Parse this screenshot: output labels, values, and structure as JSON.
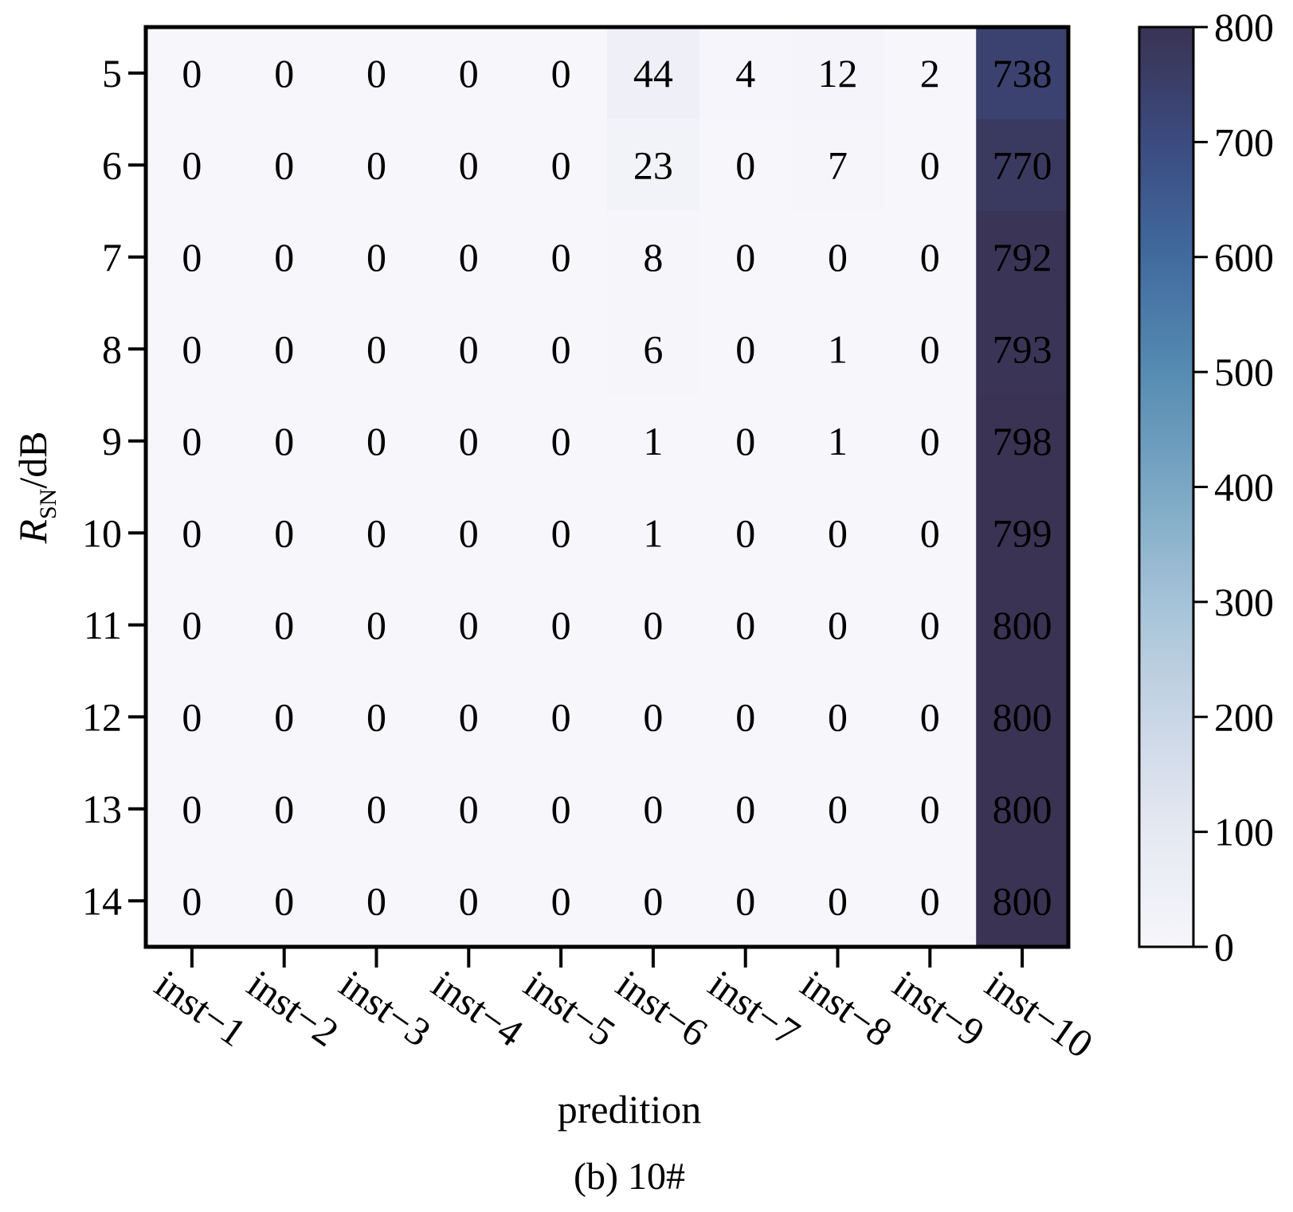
{
  "chart_data": {
    "type": "heatmap",
    "ylabel_main": "R",
    "ylabel_sub": "SN",
    "ylabel_rest": "/dB",
    "xlabel": "predition",
    "caption": "(b) 10#",
    "x_categories": [
      "inst−1",
      "inst−2",
      "inst−3",
      "inst−4",
      "inst−5",
      "inst−6",
      "inst−7",
      "inst−8",
      "inst−9",
      "inst−10"
    ],
    "y_categories": [
      "5",
      "6",
      "7",
      "8",
      "9",
      "10",
      "11",
      "12",
      "13",
      "14"
    ],
    "values": [
      [
        0,
        0,
        0,
        0,
        0,
        44,
        4,
        12,
        2,
        738
      ],
      [
        0,
        0,
        0,
        0,
        0,
        23,
        0,
        7,
        0,
        770
      ],
      [
        0,
        0,
        0,
        0,
        0,
        8,
        0,
        0,
        0,
        792
      ],
      [
        0,
        0,
        0,
        0,
        0,
        6,
        0,
        1,
        0,
        793
      ],
      [
        0,
        0,
        0,
        0,
        0,
        1,
        0,
        1,
        0,
        798
      ],
      [
        0,
        0,
        0,
        0,
        0,
        1,
        0,
        0,
        0,
        799
      ],
      [
        0,
        0,
        0,
        0,
        0,
        0,
        0,
        0,
        0,
        800
      ],
      [
        0,
        0,
        0,
        0,
        0,
        0,
        0,
        0,
        0,
        800
      ],
      [
        0,
        0,
        0,
        0,
        0,
        0,
        0,
        0,
        0,
        800
      ],
      [
        0,
        0,
        0,
        0,
        0,
        0,
        0,
        0,
        0,
        800
      ]
    ],
    "colorbar": {
      "vmin": 0,
      "vmax": 800,
      "ticks": [
        0,
        100,
        200,
        300,
        400,
        500,
        600,
        700,
        800
      ]
    },
    "colors": {
      "low": "#f4f5fa",
      "mid": "#7aa7c4",
      "high": "#3b3452"
    },
    "grid": false
  }
}
